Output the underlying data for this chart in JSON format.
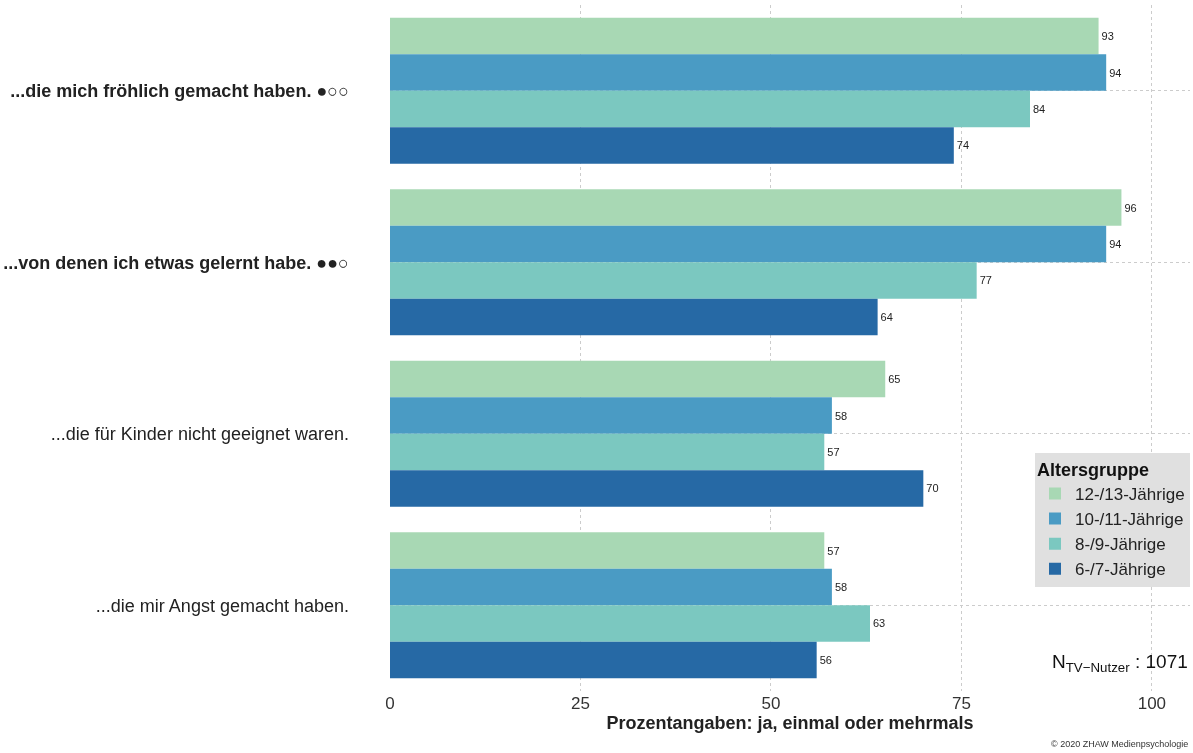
{
  "chart_data": {
    "type": "bar",
    "orientation": "horizontal",
    "categories": [
      "...die mich fröhlich gemacht haben. ●○○",
      "...von denen ich etwas gelernt habe. ●●○",
      "...die für Kinder nicht geeignet waren.",
      "...die mir Angst gemacht haben."
    ],
    "series": [
      {
        "name": "12-/13-Jährige",
        "color": "#a8d8b4",
        "values": [
          93,
          96,
          65,
          57
        ]
      },
      {
        "name": "10-/11-Jährige",
        "color": "#4a9bc4",
        "values": [
          94,
          94,
          58,
          58
        ]
      },
      {
        "name": "8-/9-Jährige",
        "color": "#7bc8c0",
        "values": [
          84,
          77,
          57,
          63
        ]
      },
      {
        "name": "6-/7-Jährige",
        "color": "#2669a5",
        "values": [
          74,
          64,
          70,
          56
        ]
      }
    ],
    "xlabel": "Prozentangaben: ja, einmal oder mehrmals",
    "legend_title": "Altersgruppe",
    "xlim": [
      0,
      105
    ],
    "xticks": [
      0,
      25,
      50,
      75,
      100
    ],
    "data_labels": true,
    "grid": true,
    "legend": "right",
    "annotations": [
      "N$_{TV−Nutzer}$ : 1071",
      "© 2020 ZHAW Medienpsychologie"
    ]
  }
}
